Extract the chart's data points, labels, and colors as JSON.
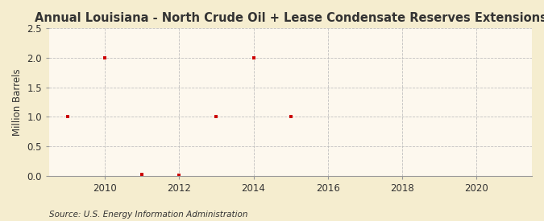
{
  "title": "Annual Louisiana - North Crude Oil + Lease Condensate Reserves Extensions",
  "ylabel": "Million Barrels",
  "source": "Source: U.S. Energy Information Administration",
  "years": [
    2009,
    2010,
    2011,
    2012,
    2013,
    2014,
    2015
  ],
  "values": [
    1.0,
    2.0,
    0.024,
    0.012,
    1.0,
    2.0,
    1.0
  ],
  "marker_color": "#cc0000",
  "figure_bg_color": "#f5edcf",
  "plot_bg_color": "#fdf8ee",
  "grid_color": "#bbbbbb",
  "spine_color": "#999999",
  "text_color": "#333333",
  "xlim": [
    2008.5,
    2021.5
  ],
  "ylim": [
    0,
    2.5
  ],
  "yticks": [
    0.0,
    0.5,
    1.0,
    1.5,
    2.0,
    2.5
  ],
  "xticks": [
    2010,
    2012,
    2014,
    2016,
    2018,
    2020
  ],
  "title_fontsize": 10.5,
  "label_fontsize": 8.5,
  "tick_fontsize": 8.5,
  "source_fontsize": 7.5
}
